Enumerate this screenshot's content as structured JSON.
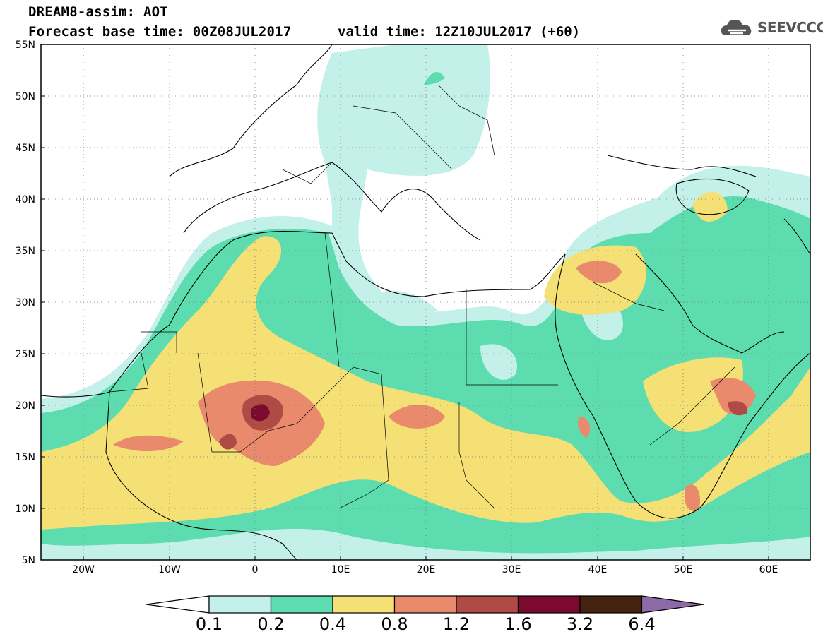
{
  "header": {
    "title": "DREAM8-assim: AOT",
    "base_time": "Forecast base time: 00Z08JUL2017",
    "valid_time": "valid time: 12Z10JUL2017 (+60)",
    "logo_text": "SEEVCCC"
  },
  "map": {
    "lat_labels": [
      "55N",
      "50N",
      "45N",
      "40N",
      "35N",
      "30N",
      "25N",
      "20N",
      "15N",
      "10N",
      "5N"
    ],
    "lon_labels": [
      "20W",
      "10W",
      "0",
      "10E",
      "20E",
      "30E",
      "40E",
      "50E",
      "60E"
    ]
  },
  "colorbar": {
    "labels": [
      "0.1",
      "0.2",
      "0.4",
      "0.8",
      "1.2",
      "1.6",
      "3.2",
      "6.4"
    ],
    "colors": [
      "#c4f0ea",
      "#5ddcb0",
      "#f5e075",
      "#ea8a6c",
      "#b04a45",
      "#7c0a2e",
      "#43230f",
      "#8c6aa8"
    ]
  },
  "colors": {
    "aot_0_1": "#c4f0ea",
    "aot_0_2": "#5ddcb0",
    "aot_0_4": "#f5e075",
    "aot_0_8": "#ea8a6c",
    "aot_1_2": "#b04a45",
    "aot_1_6": "#7c0a2e"
  }
}
